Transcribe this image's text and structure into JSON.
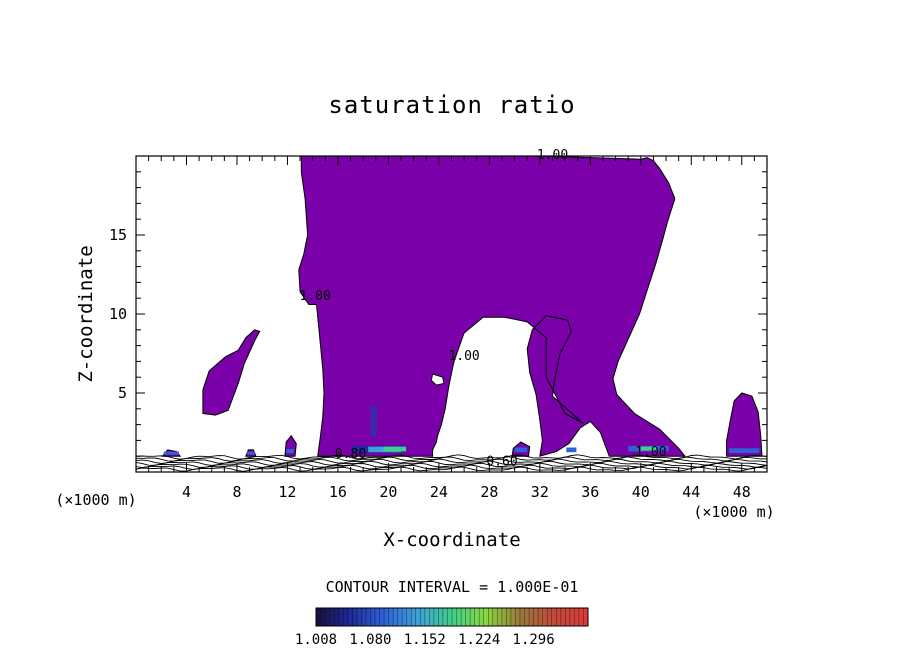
{
  "chart_data": {
    "type": "contour",
    "title": "saturation ratio",
    "xlabel": "X-coordinate",
    "ylabel": "Z-coordinate",
    "x_unit_label": "(×1000 m)",
    "xlim": [
      0,
      50
    ],
    "ylim": [
      0,
      20
    ],
    "x_ticks": [
      4,
      8,
      12,
      16,
      20,
      24,
      28,
      32,
      36,
      40,
      44,
      48
    ],
    "x_tick_labels": [
      "4",
      "8",
      "12",
      "16",
      "20",
      "24",
      "28",
      "32",
      "36",
      "40",
      "44",
      "48"
    ],
    "y_ticks": [
      5,
      10,
      15
    ],
    "y_tick_labels": [
      "5",
      "10",
      "15"
    ],
    "contour_labels": [
      {
        "text": "1.00",
        "x": 33.0,
        "y": 19.8
      },
      {
        "text": "1.00",
        "x": 14.2,
        "y": 10.9
      },
      {
        "text": "1.00",
        "x": 26.0,
        "y": 7.1
      },
      {
        "text": "0.80",
        "x": 17.0,
        "y": 0.9
      },
      {
        "text": "0.60",
        "x": 29.0,
        "y": 0.4
      },
      {
        "text": "1.00",
        "x": 40.8,
        "y": 1.0
      }
    ],
    "contour_interval_text": "CONTOUR INTERVAL = 1.000E-01",
    "colorbar": {
      "min": 1.008,
      "max": 1.368,
      "tick_labels": [
        "1.008",
        "1.080",
        "1.152",
        "1.224",
        "1.296"
      ],
      "colors": [
        "#1a0f3a",
        "#1f2a9a",
        "#2f62d8",
        "#3fa0d8",
        "#3fd08a",
        "#8ad83f",
        "#9a7a3a",
        "#c04a3a",
        "#e03a3a"
      ]
    },
    "fill_color": "#7a00aa",
    "regions": [
      {
        "name": "main-plume",
        "points": [
          [
            13.1,
            20
          ],
          [
            32,
            20
          ],
          [
            40,
            19.8
          ],
          [
            40.5,
            19.9
          ],
          [
            41,
            19.7
          ],
          [
            41.5,
            19.2
          ],
          [
            42.2,
            18.3
          ],
          [
            42.7,
            17.3
          ],
          [
            42.1,
            15.8
          ],
          [
            41.8,
            14.9
          ],
          [
            41.2,
            13.2
          ],
          [
            39.9,
            10.0
          ],
          [
            38.2,
            7.0
          ],
          [
            37.8,
            5.9
          ],
          [
            38.1,
            4.9
          ],
          [
            39.5,
            3.7
          ],
          [
            41.5,
            2.7
          ],
          [
            43.0,
            1.5
          ],
          [
            43.5,
            1.0
          ],
          [
            37.5,
            1.0
          ],
          [
            36.8,
            2.5
          ],
          [
            36.0,
            3.2
          ],
          [
            35.2,
            2.8
          ],
          [
            34.3,
            1.8
          ],
          [
            33.3,
            1.3
          ],
          [
            32.0,
            1.0
          ],
          [
            32.2,
            2.0
          ],
          [
            32.0,
            3.3
          ],
          [
            31.7,
            4.9
          ],
          [
            31.2,
            6.3
          ],
          [
            31.0,
            7.8
          ],
          [
            31.4,
            9.0
          ],
          [
            32.5,
            9.9
          ],
          [
            34.2,
            9.6
          ],
          [
            34.5,
            8.9
          ],
          [
            33.6,
            7.5
          ],
          [
            33.1,
            5.5
          ],
          [
            33.0,
            4.8
          ],
          [
            34.0,
            4.1
          ],
          [
            35.4,
            3.1
          ],
          [
            34.0,
            3.7
          ],
          [
            32.5,
            6.0
          ],
          [
            32.5,
            8.5
          ],
          [
            31.0,
            9.5
          ],
          [
            29.2,
            9.8
          ],
          [
            27.5,
            9.8
          ],
          [
            26.0,
            8.8
          ],
          [
            25.2,
            7.0
          ],
          [
            24.8,
            5.5
          ],
          [
            24.5,
            4.0
          ],
          [
            24.2,
            3.0
          ],
          [
            23.9,
            2.3
          ],
          [
            23.8,
            1.9
          ],
          [
            23.5,
            1.4
          ],
          [
            23.5,
            1.0
          ],
          [
            14.4,
            1.0
          ],
          [
            14.6,
            2.2
          ],
          [
            14.8,
            3.5
          ],
          [
            14.9,
            5.0
          ],
          [
            14.8,
            6.5
          ],
          [
            14.5,
            9.0
          ],
          [
            14.3,
            10.6
          ],
          [
            13.7,
            10.6
          ],
          [
            13.0,
            11.4
          ],
          [
            12.9,
            12.8
          ],
          [
            13.3,
            13.8
          ],
          [
            13.6,
            15.0
          ],
          [
            13.4,
            17.3
          ],
          [
            13.1,
            19.0
          ]
        ]
      },
      {
        "name": "hole-small",
        "points": [
          [
            23.5,
            6.2
          ],
          [
            24.3,
            6.0
          ],
          [
            24.4,
            5.6
          ],
          [
            23.8,
            5.5
          ],
          [
            23.4,
            5.8
          ]
        ]
      },
      {
        "name": "left-blob",
        "points": [
          [
            5.3,
            3.7
          ],
          [
            6.3,
            3.6
          ],
          [
            7.3,
            3.9
          ],
          [
            8.1,
            5.6
          ],
          [
            8.6,
            6.9
          ],
          [
            9.4,
            8.3
          ],
          [
            9.8,
            8.9
          ],
          [
            9.4,
            9.0
          ],
          [
            8.7,
            8.5
          ],
          [
            8.1,
            7.7
          ],
          [
            7.1,
            7.3
          ],
          [
            5.8,
            6.4
          ],
          [
            5.3,
            5.2
          ],
          [
            5.3,
            4.3
          ]
        ]
      },
      {
        "name": "left-low-blob",
        "points": [
          [
            11.8,
            1.0
          ],
          [
            12.6,
            1.0
          ],
          [
            12.7,
            1.8
          ],
          [
            12.3,
            2.3
          ],
          [
            11.9,
            1.9
          ]
        ]
      },
      {
        "name": "tiny-left",
        "points": [
          [
            2.1,
            1.0
          ],
          [
            3.5,
            1.0
          ],
          [
            3.2,
            1.3
          ],
          [
            2.5,
            1.4
          ]
        ]
      },
      {
        "name": "tiny-8",
        "points": [
          [
            8.7,
            1.0
          ],
          [
            9.5,
            1.0
          ],
          [
            9.3,
            1.4
          ],
          [
            8.9,
            1.4
          ]
        ]
      },
      {
        "name": "mid-right-blob",
        "points": [
          [
            29.8,
            1.0
          ],
          [
            31.1,
            1.0
          ],
          [
            31.2,
            1.6
          ],
          [
            30.5,
            1.9
          ],
          [
            29.9,
            1.5
          ]
        ]
      },
      {
        "name": "right-blob",
        "points": [
          [
            46.8,
            1.0
          ],
          [
            49.6,
            1.0
          ],
          [
            49.5,
            2.3
          ],
          [
            49.3,
            3.8
          ],
          [
            48.8,
            4.8
          ],
          [
            48.0,
            5.0
          ],
          [
            47.4,
            4.5
          ],
          [
            47.1,
            3.3
          ],
          [
            46.8,
            2.0
          ]
        ]
      }
    ]
  }
}
